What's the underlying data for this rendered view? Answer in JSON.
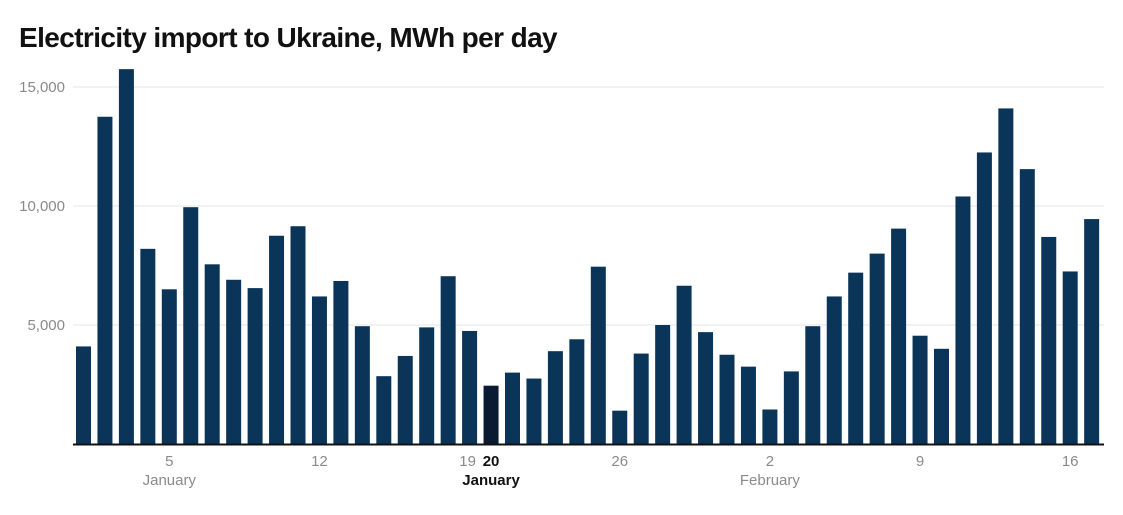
{
  "chart_data": {
    "type": "bar",
    "title": "Electricity import to Ukraine, MWh per day",
    "xlabel": "",
    "ylabel": "",
    "ylim": [
      0,
      15000
    ],
    "yticks": [
      {
        "value": 5000,
        "label": "5,000"
      },
      {
        "value": 10000,
        "label": "10,000"
      },
      {
        "value": 15000,
        "label": "15,000"
      }
    ],
    "grid": true,
    "bar_color": "#0b3558",
    "highlight_color": "#0a1a33",
    "axis_color": "#111111",
    "grid_color": "#e4e4e4",
    "highlight_index": 19,
    "x_ticks": [
      {
        "index": 4,
        "label": "5",
        "bold": false
      },
      {
        "index": 11,
        "label": "12",
        "bold": false
      },
      {
        "index": 18,
        "label": "19",
        "bold": false
      },
      {
        "index": 19,
        "label": "20",
        "bold": true
      },
      {
        "index": 25,
        "label": "26",
        "bold": false
      },
      {
        "index": 32,
        "label": "2",
        "bold": false
      },
      {
        "index": 39,
        "label": "9",
        "bold": false
      },
      {
        "index": 46,
        "label": "16",
        "bold": false
      }
    ],
    "month_labels": [
      {
        "index": 4,
        "label": "January",
        "bold": false
      },
      {
        "index": 19,
        "label": "January",
        "bold": true
      },
      {
        "index": 32,
        "label": "February",
        "bold": false
      }
    ],
    "values": [
      4100,
      13750,
      15750,
      8200,
      6500,
      9950,
      7550,
      6900,
      6550,
      8750,
      9150,
      6200,
      6850,
      4950,
      2850,
      3700,
      4900,
      7050,
      4750,
      2450,
      3000,
      2750,
      3900,
      4400,
      7450,
      1400,
      3800,
      5000,
      6650,
      4700,
      3750,
      3250,
      1450,
      3050,
      4950,
      6200,
      7200,
      8000,
      9050,
      4550,
      4000,
      10400,
      12250,
      14100,
      11550,
      8700,
      7250,
      9450
    ]
  }
}
